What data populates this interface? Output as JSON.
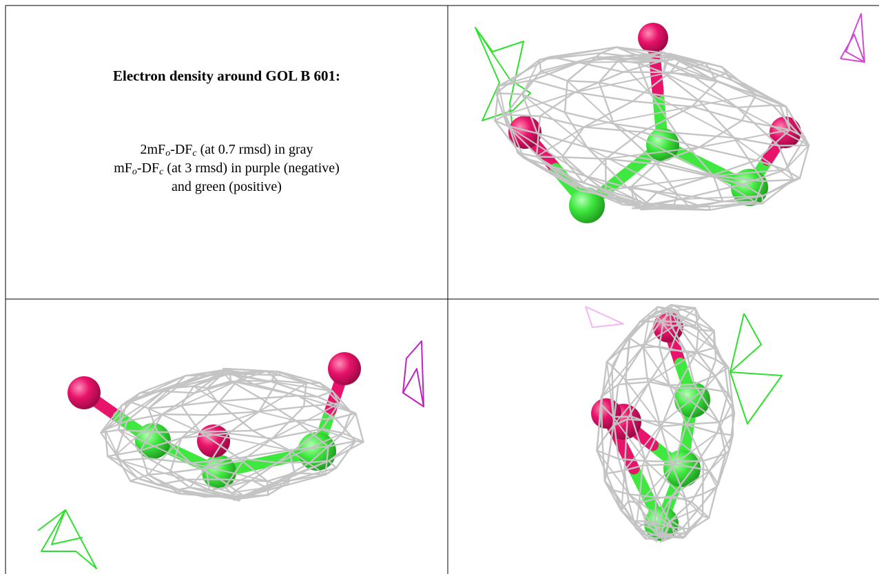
{
  "cell": {
    "title": "Electron density around GOL B 601:",
    "line1": [
      "2mF",
      "o",
      "-DF",
      "c",
      " (at 0.7 rmsd) in gray"
    ],
    "line2": [
      "mF",
      "o",
      "-DF",
      "c",
      " (at 3 rmsd) in purple (negative)"
    ],
    "line3": "and green (positive)"
  }
}
